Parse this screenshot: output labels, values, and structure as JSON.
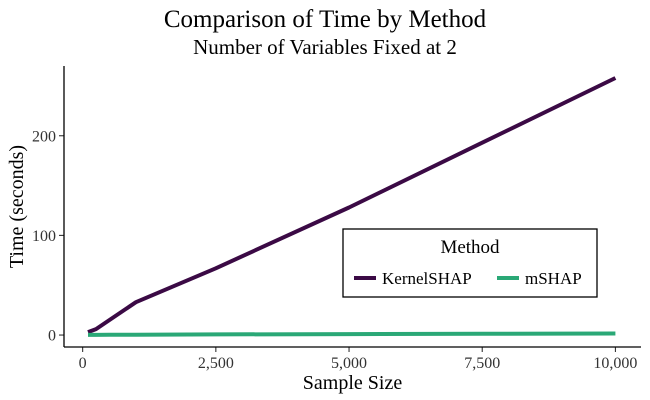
{
  "chart_data": {
    "type": "line",
    "title": "Comparison of Time by Method",
    "subtitle": "Number of Variables Fixed at 2",
    "xlabel": "Sample Size",
    "ylabel": "Time (seconds)",
    "xlim": [
      -350,
      10480
    ],
    "ylim": [
      -12,
      270
    ],
    "x_ticks": [
      0,
      2500,
      5000,
      7500,
      10000
    ],
    "x_tick_labels": [
      "0",
      "2,500",
      "5,000",
      "7,500",
      "10,000"
    ],
    "y_ticks": [
      0,
      100,
      200
    ],
    "y_tick_labels": [
      "0",
      "100",
      "200"
    ],
    "grid": false,
    "legend": {
      "title": "Method",
      "position": "bottom-right",
      "orientation": "horizontal"
    },
    "series": [
      {
        "name": "KernelSHAP",
        "color": "#3b0a45",
        "x": [
          100,
          250,
          500,
          1000,
          2500,
          5000,
          7500,
          10000
        ],
        "y": [
          3,
          6,
          15,
          33,
          67,
          128,
          193,
          258
        ]
      },
      {
        "name": "mSHAP",
        "color": "#2aa876",
        "x": [
          100,
          250,
          500,
          1000,
          2500,
          5000,
          7500,
          10000
        ],
        "y": [
          0.1,
          0.1,
          0.2,
          0.3,
          0.6,
          0.9,
          1.2,
          1.5
        ]
      }
    ]
  }
}
